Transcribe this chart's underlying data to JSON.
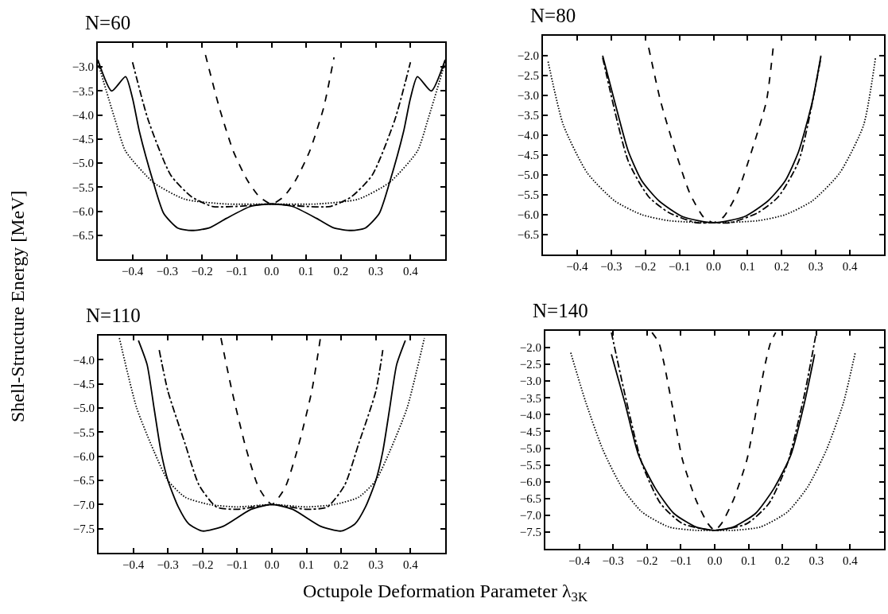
{
  "chart_data": [
    {
      "type": "line",
      "title": "N=60",
      "ylabel": "Shell-Structure Energy [MeV]",
      "xlim": [
        -0.5,
        0.5
      ],
      "ylim": [
        -7.0,
        -2.5
      ],
      "xticks": [
        {
          "value": -0.4,
          "label": "−0.4"
        },
        {
          "value": -0.3,
          "label": "−0.3"
        },
        {
          "value": -0.2,
          "label": "−0.2"
        },
        {
          "value": -0.1,
          "label": "−0.1"
        },
        {
          "value": 0.0,
          "label": "0.0"
        },
        {
          "value": 0.1,
          "label": "0.1"
        },
        {
          "value": 0.2,
          "label": "0.2"
        },
        {
          "value": 0.3,
          "label": "0.3"
        },
        {
          "value": 0.4,
          "label": "0.4"
        }
      ],
      "yticks": [
        {
          "value": -6.5,
          "label": "−6.5"
        },
        {
          "value": -6.0,
          "label": "−6.0"
        },
        {
          "value": -5.5,
          "label": "−5.5"
        },
        {
          "value": -5.0,
          "label": "−5.0"
        },
        {
          "value": -4.5,
          "label": "−4.5"
        },
        {
          "value": -4.0,
          "label": "−4.0"
        },
        {
          "value": -3.5,
          "label": "−3.5"
        },
        {
          "value": -3.0,
          "label": "−3.0"
        }
      ],
      "series": [
        {
          "color": "#000000",
          "line_style": "solid",
          "x": [
            -0.5,
            -0.46,
            -0.42,
            -0.4,
            -0.38,
            -0.34,
            -0.31,
            -0.27,
            -0.23,
            -0.18,
            -0.13,
            -0.06,
            0,
            0.06,
            0.13,
            0.18,
            0.23,
            0.27,
            0.31,
            0.34,
            0.38,
            0.4,
            0.42,
            0.46,
            0.5
          ],
          "values": [
            -2.85,
            -3.5,
            -3.2,
            -3.65,
            -4.35,
            -5.4,
            -6.05,
            -6.35,
            -6.4,
            -6.35,
            -6.15,
            -5.9,
            -5.85,
            -5.9,
            -6.15,
            -6.35,
            -6.4,
            -6.35,
            -6.05,
            -5.4,
            -4.35,
            -3.65,
            -3.2,
            -3.5,
            -2.85
          ]
        },
        {
          "color": "#000000",
          "line_style": "dotted",
          "x": [
            -0.5,
            -0.45,
            -0.42,
            -0.34,
            -0.25,
            -0.13,
            0,
            0.13,
            0.25,
            0.34,
            0.42,
            0.45,
            0.5
          ],
          "values": [
            -2.9,
            -4.1,
            -4.75,
            -5.4,
            -5.75,
            -5.85,
            -5.85,
            -5.85,
            -5.75,
            -5.4,
            -4.75,
            -4.1,
            -2.9
          ]
        },
        {
          "color": "#000000",
          "line_style": "dashdot",
          "x": [
            -0.4,
            -0.355,
            -0.29,
            -0.23,
            -0.17,
            -0.1,
            0,
            0.1,
            0.17,
            0.23,
            0.29,
            0.355,
            0.4
          ],
          "values": [
            -2.9,
            -4.1,
            -5.25,
            -5.7,
            -5.9,
            -5.9,
            -5.85,
            -5.9,
            -5.9,
            -5.7,
            -5.25,
            -4.1,
            -2.9
          ]
        },
        {
          "color": "#000000",
          "line_style": "dashed",
          "x": [
            -0.19,
            -0.15,
            -0.11,
            -0.07,
            -0.035,
            0,
            0.035,
            0.07,
            0.11,
            0.15,
            0.18
          ],
          "values": [
            -2.75,
            -3.85,
            -4.75,
            -5.35,
            -5.7,
            -5.85,
            -5.7,
            -5.35,
            -4.75,
            -3.85,
            -2.8
          ]
        }
      ]
    },
    {
      "type": "line",
      "title": "N=80",
      "xlim": [
        -0.5,
        0.5
      ],
      "ylim": [
        -7.0,
        -1.5
      ],
      "xticks": [
        {
          "value": -0.4,
          "label": "−0.4"
        },
        {
          "value": -0.3,
          "label": "−0.3"
        },
        {
          "value": -0.2,
          "label": "−0.2"
        },
        {
          "value": -0.1,
          "label": "−0.1"
        },
        {
          "value": 0.0,
          "label": "0.0"
        },
        {
          "value": 0.1,
          "label": "0.1"
        },
        {
          "value": 0.2,
          "label": "0.2"
        },
        {
          "value": 0.3,
          "label": "0.3"
        },
        {
          "value": 0.4,
          "label": "0.4"
        }
      ],
      "yticks": [
        {
          "value": -6.5,
          "label": "−6.5"
        },
        {
          "value": -6.0,
          "label": "−6.0"
        },
        {
          "value": -5.5,
          "label": "−5.5"
        },
        {
          "value": -5.0,
          "label": "−5.0"
        },
        {
          "value": -4.5,
          "label": "−4.5"
        },
        {
          "value": -4.0,
          "label": "−4.0"
        },
        {
          "value": -3.5,
          "label": "−3.5"
        },
        {
          "value": -3.0,
          "label": "−3.0"
        },
        {
          "value": -2.5,
          "label": "−2.5"
        },
        {
          "value": -2.0,
          "label": "−2.0"
        }
      ],
      "series": [
        {
          "color": "#000000",
          "line_style": "solid",
          "x": [
            -0.325,
            -0.29,
            -0.25,
            -0.21,
            -0.16,
            -0.09,
            0,
            0.09,
            0.16,
            0.21,
            0.25,
            0.29,
            0.315
          ],
          "values": [
            -2.0,
            -3.15,
            -4.4,
            -5.15,
            -5.65,
            -6.05,
            -6.2,
            -6.05,
            -5.65,
            -5.15,
            -4.4,
            -3.15,
            -2.0
          ]
        },
        {
          "color": "#000000",
          "line_style": "dashdot",
          "x": [
            -0.325,
            -0.25,
            -0.19,
            -0.13,
            -0.05,
            0,
            0.05,
            0.13,
            0.19,
            0.25,
            0.315
          ],
          "values": [
            -2.05,
            -4.65,
            -5.55,
            -5.95,
            -6.2,
            -6.2,
            -6.2,
            -5.95,
            -5.55,
            -4.65,
            -2.05
          ]
        },
        {
          "color": "#000000",
          "line_style": "dashed",
          "x": [
            -0.19,
            -0.155,
            -0.11,
            -0.07,
            -0.03,
            0,
            0.03,
            0.07,
            0.11,
            0.155,
            0.175
          ],
          "values": [
            -1.8,
            -3.15,
            -4.45,
            -5.45,
            -6.05,
            -6.2,
            -6.05,
            -5.45,
            -4.45,
            -3.15,
            -1.8
          ]
        },
        {
          "color": "#000000",
          "line_style": "dotted",
          "x": [
            -0.485,
            -0.44,
            -0.37,
            -0.29,
            -0.21,
            -0.13,
            0,
            0.13,
            0.21,
            0.29,
            0.37,
            0.44,
            0.475
          ],
          "values": [
            -2.15,
            -3.75,
            -4.95,
            -5.65,
            -6.0,
            -6.15,
            -6.2,
            -6.15,
            -6.0,
            -5.65,
            -4.95,
            -3.75,
            -2.05
          ]
        }
      ]
    },
    {
      "type": "line",
      "title": "N=110",
      "xlabel": "Octupole Deformation Parameter λ$_{3K}$",
      "xlim": [
        -0.5,
        0.5
      ],
      "ylim": [
        -8.0,
        -3.5
      ],
      "xticks": [
        {
          "value": -0.4,
          "label": "−0.4"
        },
        {
          "value": -0.3,
          "label": "−0.3"
        },
        {
          "value": -0.2,
          "label": "−0.2"
        },
        {
          "value": -0.1,
          "label": "−0.1"
        },
        {
          "value": 0.0,
          "label": "0.0"
        },
        {
          "value": 0.1,
          "label": "0.1"
        },
        {
          "value": 0.2,
          "label": "0.2"
        },
        {
          "value": 0.3,
          "label": "0.3"
        },
        {
          "value": 0.4,
          "label": "0.4"
        }
      ],
      "yticks": [
        {
          "value": -7.5,
          "label": "−7.5"
        },
        {
          "value": -7.0,
          "label": "−7.0"
        },
        {
          "value": -6.5,
          "label": "−6.5"
        },
        {
          "value": -6.0,
          "label": "−6.0"
        },
        {
          "value": -5.5,
          "label": "−5.5"
        },
        {
          "value": -5.0,
          "label": "−5.0"
        },
        {
          "value": -4.5,
          "label": "−4.5"
        },
        {
          "value": -4.0,
          "label": "−4.0"
        }
      ],
      "series": [
        {
          "color": "#000000",
          "line_style": "solid",
          "x": [
            -0.385,
            -0.36,
            -0.34,
            -0.32,
            -0.3,
            -0.27,
            -0.24,
            -0.2,
            -0.14,
            -0.06,
            0,
            0.06,
            0.14,
            0.2,
            0.24,
            0.27,
            0.3,
            0.32,
            0.34,
            0.36,
            0.385
          ],
          "values": [
            -3.6,
            -4.1,
            -5.0,
            -5.9,
            -6.5,
            -7.05,
            -7.4,
            -7.55,
            -7.45,
            -7.1,
            -7.0,
            -7.1,
            -7.45,
            -7.55,
            -7.4,
            -7.05,
            -6.5,
            -5.9,
            -5.0,
            -4.1,
            -3.6
          ]
        },
        {
          "color": "#000000",
          "line_style": "dotted",
          "x": [
            -0.44,
            -0.39,
            -0.34,
            -0.3,
            -0.25,
            -0.18,
            -0.1,
            0,
            0.1,
            0.18,
            0.25,
            0.3,
            0.34,
            0.39,
            0.44
          ],
          "values": [
            -3.55,
            -5.0,
            -5.9,
            -6.5,
            -6.85,
            -7.0,
            -7.05,
            -7.0,
            -7.05,
            -7.0,
            -6.85,
            -6.5,
            -5.9,
            -5.0,
            -3.55
          ]
        },
        {
          "color": "#000000",
          "line_style": "dashdot",
          "x": [
            -0.325,
            -0.3,
            -0.25,
            -0.21,
            -0.16,
            -0.1,
            0,
            0.1,
            0.16,
            0.21,
            0.25,
            0.3,
            0.32
          ],
          "values": [
            -3.8,
            -4.65,
            -5.75,
            -6.6,
            -7.05,
            -7.1,
            -7.0,
            -7.1,
            -7.05,
            -6.6,
            -5.75,
            -4.65,
            -3.8
          ]
        },
        {
          "color": "#000000",
          "line_style": "dashed",
          "x": [
            -0.147,
            -0.115,
            -0.076,
            -0.038,
            0,
            0.038,
            0.076,
            0.115,
            0.14
          ],
          "values": [
            -3.55,
            -4.65,
            -5.8,
            -6.65,
            -7.0,
            -6.65,
            -5.8,
            -4.65,
            -3.55
          ]
        }
      ]
    },
    {
      "type": "line",
      "title": "N=140",
      "xlim": [
        -0.5,
        0.5
      ],
      "ylim": [
        -8.0,
        -1.5
      ],
      "xticks": [
        {
          "value": -0.4,
          "label": "−0.4"
        },
        {
          "value": -0.3,
          "label": "−0.3"
        },
        {
          "value": -0.2,
          "label": "−0.2"
        },
        {
          "value": -0.1,
          "label": "−0.1"
        },
        {
          "value": 0.0,
          "label": "0.0"
        },
        {
          "value": 0.1,
          "label": "0.1"
        },
        {
          "value": 0.2,
          "label": "0.2"
        },
        {
          "value": 0.3,
          "label": "0.3"
        },
        {
          "value": 0.4,
          "label": "0.4"
        }
      ],
      "yticks": [
        {
          "value": -7.5,
          "label": "−7.5"
        },
        {
          "value": -7.0,
          "label": "−7.0"
        },
        {
          "value": -6.5,
          "label": "−6.5"
        },
        {
          "value": -6.0,
          "label": "−6.0"
        },
        {
          "value": -5.5,
          "label": "−5.5"
        },
        {
          "value": -5.0,
          "label": "−5.0"
        },
        {
          "value": -4.5,
          "label": "−4.5"
        },
        {
          "value": -4.0,
          "label": "−4.0"
        },
        {
          "value": -3.5,
          "label": "−3.5"
        },
        {
          "value": -3.0,
          "label": "−3.0"
        },
        {
          "value": -2.5,
          "label": "−2.5"
        },
        {
          "value": -2.0,
          "label": "−2.0"
        }
      ],
      "series": [
        {
          "color": "#000000",
          "line_style": "solid",
          "x": [
            -0.305,
            -0.265,
            -0.225,
            -0.175,
            -0.12,
            -0.055,
            0,
            0.055,
            0.12,
            0.175,
            0.225,
            0.265,
            0.295
          ],
          "values": [
            -2.2,
            -3.65,
            -5.2,
            -6.2,
            -6.95,
            -7.35,
            -7.45,
            -7.35,
            -6.95,
            -6.2,
            -5.2,
            -3.65,
            -2.2
          ]
        },
        {
          "color": "#000000",
          "line_style": "dashdot",
          "x": [
            -0.305,
            -0.265,
            -0.215,
            -0.16,
            -0.095,
            0,
            0.095,
            0.16,
            0.215,
            0.265,
            0.3
          ],
          "values": [
            -1.55,
            -3.4,
            -5.45,
            -6.65,
            -7.25,
            -7.45,
            -7.25,
            -6.65,
            -5.45,
            -3.4,
            -1.55
          ]
        },
        {
          "color": "#000000",
          "line_style": "dashed",
          "x": [
            -0.185,
            -0.165,
            -0.15,
            -0.125,
            -0.095,
            -0.055,
            -0.02,
            0,
            0.02,
            0.055,
            0.095,
            0.125,
            0.15,
            0.165,
            0.18
          ],
          "values": [
            -1.55,
            -1.85,
            -2.45,
            -3.75,
            -5.35,
            -6.55,
            -7.25,
            -7.45,
            -7.25,
            -6.55,
            -5.35,
            -3.75,
            -2.45,
            -1.85,
            -1.55
          ]
        },
        {
          "color": "#000000",
          "line_style": "dotted",
          "x": [
            -0.425,
            -0.38,
            -0.33,
            -0.275,
            -0.215,
            -0.135,
            -0.055,
            0,
            0.055,
            0.135,
            0.215,
            0.275,
            0.33,
            0.38,
            0.415
          ],
          "values": [
            -2.15,
            -3.65,
            -5.05,
            -6.15,
            -6.9,
            -7.35,
            -7.45,
            -7.45,
            -7.45,
            -7.35,
            -6.9,
            -6.15,
            -5.05,
            -3.65,
            -2.15
          ]
        }
      ]
    }
  ]
}
